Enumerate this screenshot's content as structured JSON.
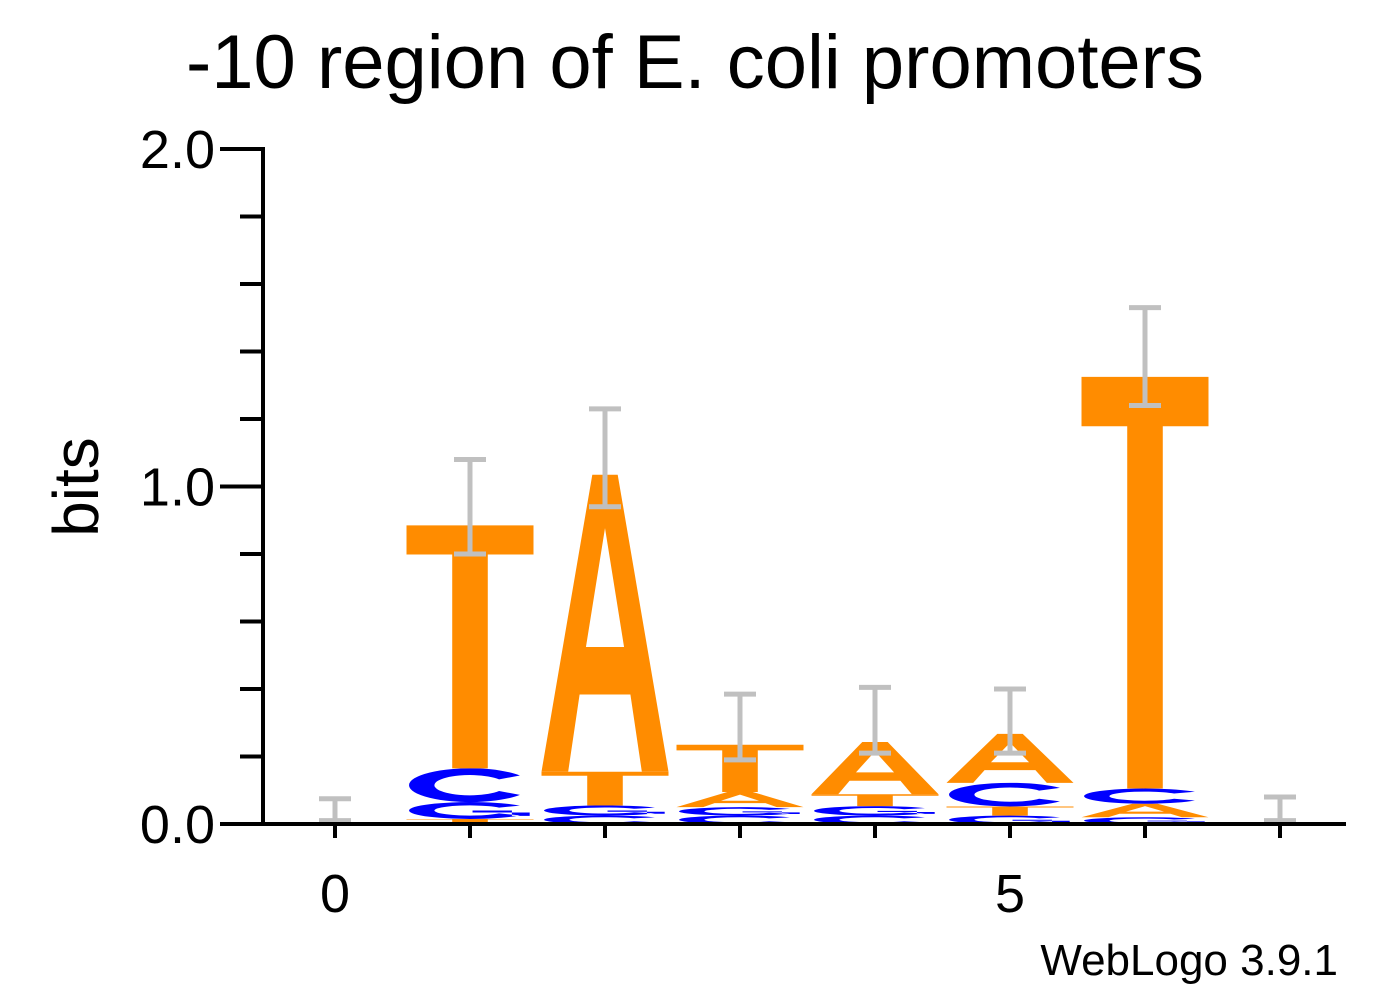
{
  "chart_data": {
    "type": "sequence-logo",
    "title": "-10 region of E. coli promoters",
    "ylabel": "bits",
    "xlabel": "",
    "ylim": [
      0,
      2.0
    ],
    "ytick_labels": [
      "0.0",
      "1.0",
      "2.0"
    ],
    "yticks_major": [
      0,
      1.0,
      2.0
    ],
    "yticks_minor_step": 0.2,
    "xticks": [
      0,
      1,
      2,
      3,
      4,
      5,
      6,
      7
    ],
    "xtick_labels": {
      "0": "0",
      "5": "5"
    },
    "footer": "WebLogo 3.9.1",
    "colors": {
      "A": "#ff8c00",
      "T": "#ff8c00",
      "C": "#0000ff",
      "G": "#0000ff",
      "error": "#c0c0c0",
      "axis": "#000000"
    },
    "positions": [
      {
        "pos": 0,
        "stack": [],
        "error": [
          0.01,
          0.075
        ]
      },
      {
        "pos": 1,
        "stack": [
          {
            "letter": "T",
            "bits": 0.015
          },
          {
            "letter": "G",
            "bits": 0.05
          },
          {
            "letter": "C",
            "bits": 0.1
          },
          {
            "letter": "T",
            "bits": 0.72
          }
        ],
        "error": [
          0.8,
          1.08
        ]
      },
      {
        "pos": 2,
        "stack": [
          {
            "letter": "C",
            "bits": 0.025
          },
          {
            "letter": "G",
            "bits": 0.03
          },
          {
            "letter": "T",
            "bits": 0.1
          },
          {
            "letter": "A",
            "bits": 0.88
          }
        ],
        "error": [
          0.94,
          1.23
        ]
      },
      {
        "pos": 3,
        "stack": [
          {
            "letter": "C",
            "bits": 0.025
          },
          {
            "letter": "G",
            "bits": 0.025
          },
          {
            "letter": "A",
            "bits": 0.045
          },
          {
            "letter": "T",
            "bits": 0.14
          }
        ],
        "error": [
          0.19,
          0.385
        ]
      },
      {
        "pos": 4,
        "stack": [
          {
            "letter": "C",
            "bits": 0.025
          },
          {
            "letter": "G",
            "bits": 0.028
          },
          {
            "letter": "T",
            "bits": 0.035
          },
          {
            "letter": "A",
            "bits": 0.155
          }
        ],
        "error": [
          0.21,
          0.405
        ]
      },
      {
        "pos": 5,
        "stack": [
          {
            "letter": "G",
            "bits": 0.025
          },
          {
            "letter": "T",
            "bits": 0.027
          },
          {
            "letter": "C",
            "bits": 0.07
          },
          {
            "letter": "A",
            "bits": 0.145
          }
        ],
        "error": [
          0.21,
          0.4
        ]
      },
      {
        "pos": 6,
        "stack": [
          {
            "letter": "G",
            "bits": 0.02
          },
          {
            "letter": "A",
            "bits": 0.04
          },
          {
            "letter": "C",
            "bits": 0.045
          },
          {
            "letter": "T",
            "bits": 1.22
          }
        ],
        "error": [
          1.24,
          1.53
        ]
      },
      {
        "pos": 7,
        "stack": [
          {
            "letter": "C",
            "bits": 0.003
          }
        ],
        "error": [
          0.01,
          0.08
        ]
      }
    ]
  }
}
